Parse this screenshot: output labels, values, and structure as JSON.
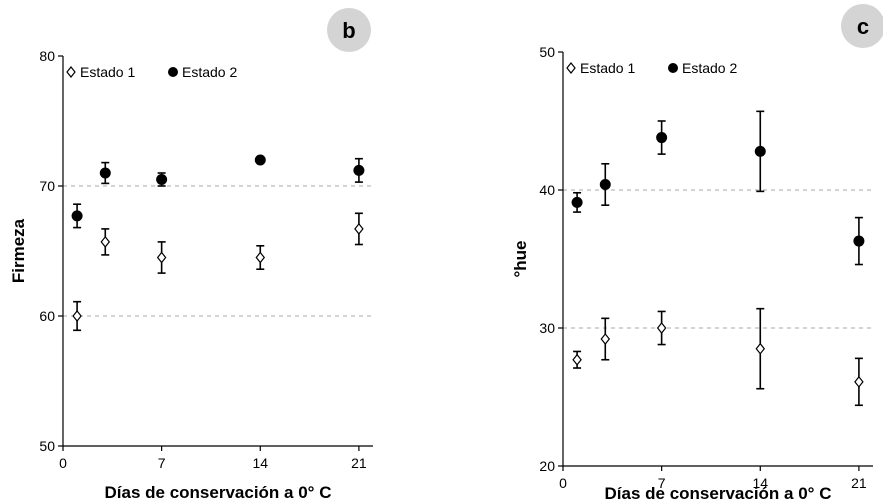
{
  "chart_data": [
    {
      "type": "scatter",
      "panel_label": "b",
      "title": "",
      "xlabel": "Días de conservación a 0° C",
      "ylabel": "Firmeza",
      "xlim": [
        0,
        22
      ],
      "ylim": [
        50,
        80
      ],
      "xticks": [
        0,
        7,
        14,
        21
      ],
      "yticks": [
        50,
        60,
        70,
        80
      ],
      "grid_y": [
        60,
        70
      ],
      "legend_position": "top-left",
      "series": [
        {
          "name": "Estado 1",
          "marker": "open-diamond",
          "x": [
            1,
            3,
            7,
            14,
            21
          ],
          "y": [
            60.0,
            65.7,
            64.5,
            64.5,
            66.7
          ],
          "err": [
            1.1,
            1.0,
            1.2,
            0.9,
            1.2
          ]
        },
        {
          "name": "Estado 2",
          "marker": "filled-circle",
          "x": [
            1,
            3,
            7,
            14,
            21
          ],
          "y": [
            67.7,
            71.0,
            70.5,
            72.0,
            71.2
          ],
          "err": [
            0.9,
            0.8,
            0.5,
            0,
            0.9
          ]
        }
      ]
    },
    {
      "type": "scatter",
      "panel_label": "c",
      "title": "",
      "xlabel": "Días de conservación a 0° C",
      "ylabel": "°hue",
      "xlim": [
        0,
        22
      ],
      "ylim": [
        20,
        50
      ],
      "xticks": [
        0,
        7,
        14,
        21
      ],
      "yticks": [
        20,
        30,
        40,
        50
      ],
      "grid_y": [
        30,
        40
      ],
      "legend_position": "top-left",
      "series": [
        {
          "name": "Estado 1",
          "marker": "open-diamond",
          "x": [
            1,
            3,
            7,
            14,
            21
          ],
          "y": [
            27.7,
            29.2,
            30.0,
            28.5,
            26.1
          ],
          "err": [
            0.6,
            1.5,
            1.2,
            2.9,
            1.7
          ]
        },
        {
          "name": "Estado 2",
          "marker": "filled-circle",
          "x": [
            1,
            3,
            7,
            14,
            21
          ],
          "y": [
            39.1,
            40.4,
            43.8,
            42.8,
            36.3
          ],
          "err": [
            0.7,
            1.5,
            1.2,
            2.9,
            1.7
          ]
        }
      ]
    }
  ]
}
